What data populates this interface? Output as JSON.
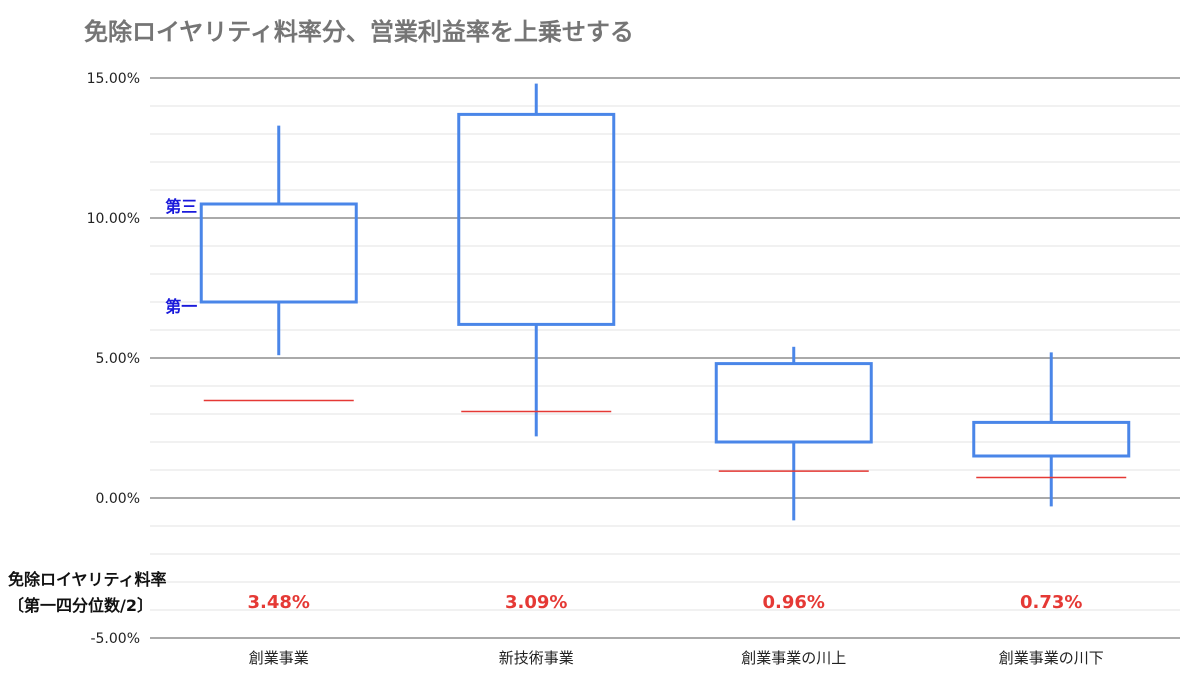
{
  "chart_data": {
    "type": "box",
    "title": "免除ロイヤリティ料率分、営業利益率を上乗せする",
    "yaxis": {
      "ticks": [
        "15.00%",
        "10.00%",
        "5.00%",
        "0.00%",
        "-5.00%"
      ],
      "tick_values": [
        15,
        10,
        5,
        0,
        -5
      ],
      "range": [
        -5,
        15
      ],
      "unit": "%",
      "grid": true
    },
    "categories": [
      "創業事業",
      "新技術事業",
      "創業事業の川上",
      "創業事業の川下"
    ],
    "boxes": [
      {
        "category": "創業事業",
        "min": 5.1,
        "q1": 7.0,
        "q3": 10.5,
        "max": 13.3
      },
      {
        "category": "新技術事業",
        "min": 2.2,
        "q1": 6.2,
        "q3": 13.7,
        "max": 14.8
      },
      {
        "category": "創業事業の川上",
        "min": -0.8,
        "q1": 2.0,
        "q3": 4.8,
        "max": 5.4
      },
      {
        "category": "創業事業の川下",
        "min": -0.3,
        "q1": 1.5,
        "q3": 2.7,
        "max": 5.2
      }
    ],
    "royalty_rate": {
      "values": [
        3.48,
        3.09,
        0.96,
        0.73
      ],
      "labels": [
        "3.48%",
        "3.09%",
        "0.96%",
        "0.73%"
      ],
      "color": "#e53935"
    },
    "annotations": {
      "q3_label": "第三",
      "q1_label": "第一",
      "color": "#1a1adb"
    },
    "side_label_line1": "免除ロイヤリティ料率",
    "side_label_line2": "〔第一四分位数/2〕",
    "box_color": "#4a86e8"
  }
}
